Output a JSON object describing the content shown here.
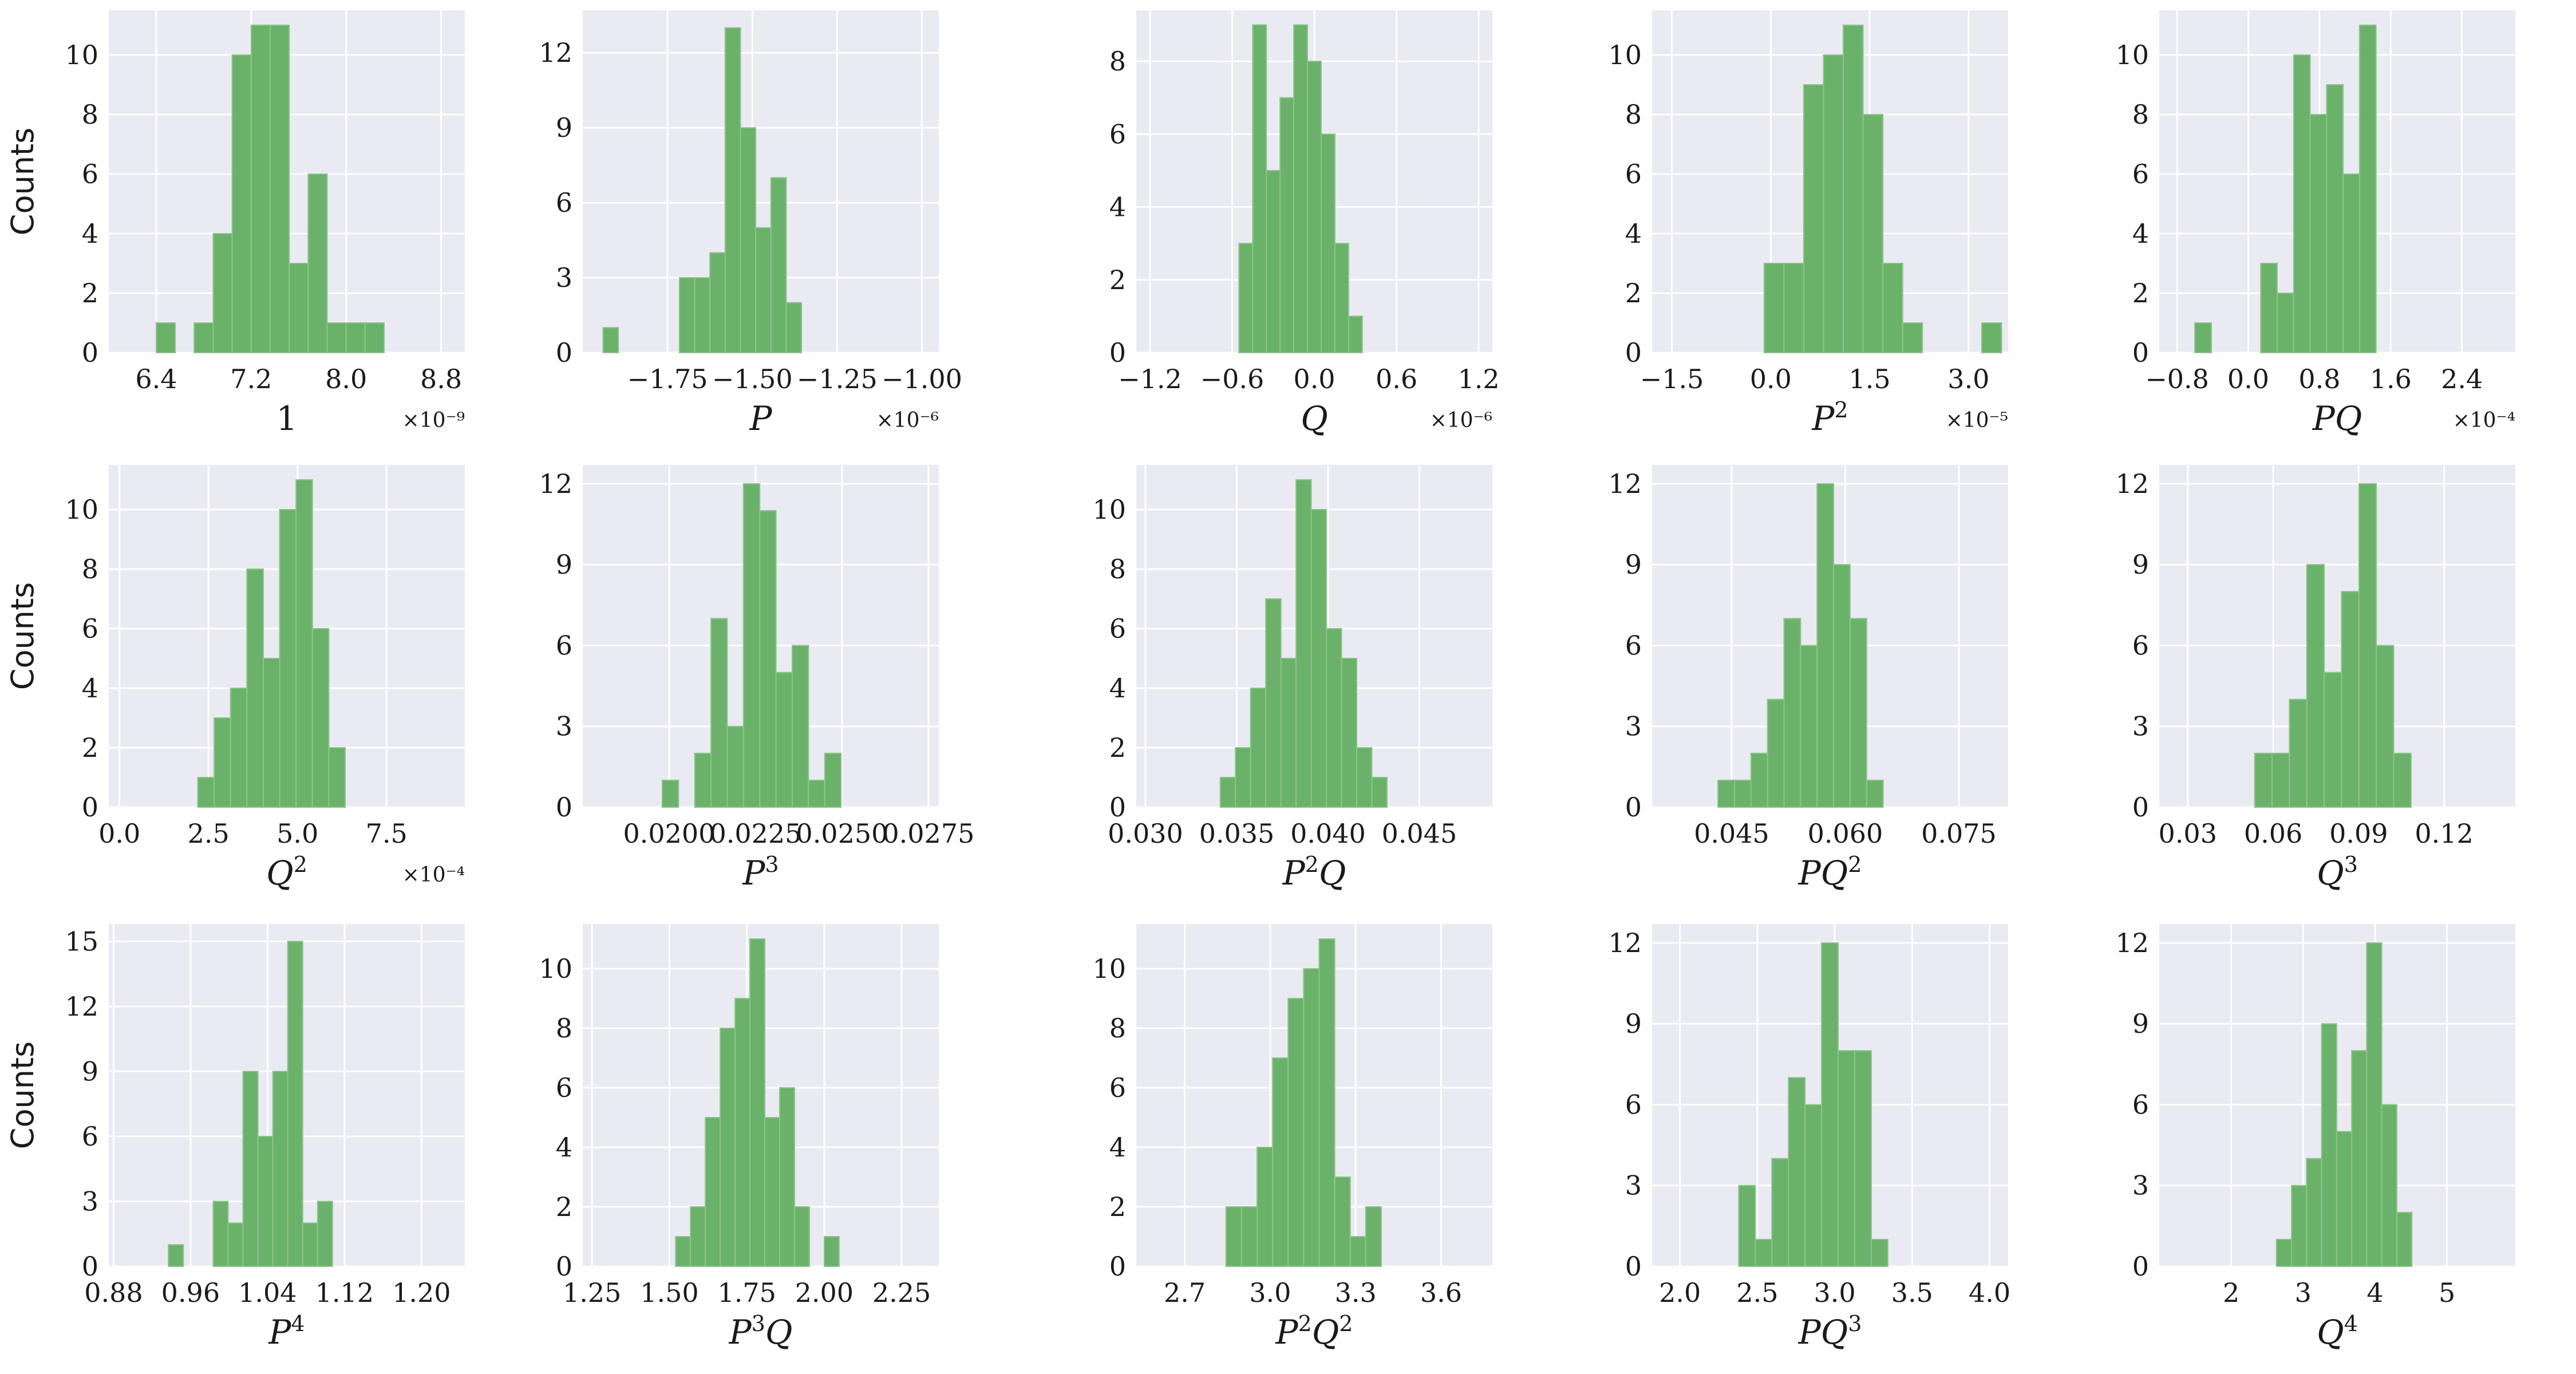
{
  "figure": {
    "background": "#ffffff",
    "axes_background": "#eaeaf2",
    "grid_color": "#ffffff",
    "bar_color": "#6ab26a",
    "bar_edge": "#8cc48c",
    "ylabel": "Counts"
  },
  "chart_data": [
    {
      "type": "bar",
      "xlabel": "1",
      "xlabel_sup": "",
      "exponent": "×10⁻⁹",
      "xlim": [
        6.0,
        9.0
      ],
      "xticks": [
        6.4,
        7.2,
        8.0,
        8.8
      ],
      "xtick_labels": [
        "6.4",
        "7.2",
        "8.0",
        "8.8"
      ],
      "ylim": [
        0,
        11.5
      ],
      "yticks": [
        0,
        2,
        4,
        6,
        8,
        10
      ],
      "bin_start": 6.4,
      "bin_width": 0.16,
      "values": [
        1,
        0,
        1,
        4,
        10,
        11,
        11,
        3,
        6,
        1,
        1,
        1
      ],
      "grid": true
    },
    {
      "type": "bar",
      "xlabel": "P",
      "xlabel_sup": "",
      "exponent": "×10⁻⁶",
      "xlim": [
        -2.0,
        -0.95
      ],
      "xticks": [
        -1.75,
        -1.5,
        -1.25,
        -1.0
      ],
      "xtick_labels": [
        "−1.75",
        "−1.50",
        "−1.25",
        "−1.00"
      ],
      "ylim": [
        0,
        13.7
      ],
      "yticks": [
        0,
        3,
        6,
        9,
        12
      ],
      "bin_start": -1.94,
      "bin_width": 0.045,
      "values": [
        1,
        0,
        0,
        0,
        0,
        3,
        3,
        4,
        13,
        9,
        5,
        7,
        2
      ],
      "grid": true
    },
    {
      "type": "bar",
      "xlabel": "Q",
      "xlabel_sup": "",
      "exponent": "×10⁻⁶",
      "xlim": [
        -1.3,
        1.3
      ],
      "xticks": [
        -1.2,
        -0.6,
        0,
        0.6,
        1.2
      ],
      "xtick_labels": [
        "−1.2",
        "−0.6",
        "0.0",
        "0.6",
        "1.2"
      ],
      "ylim": [
        0,
        9.4
      ],
      "yticks": [
        0,
        2,
        4,
        6,
        8
      ],
      "bin_start": -0.55,
      "bin_width": 0.1,
      "values": [
        3,
        9,
        5,
        7,
        9,
        8,
        6,
        3,
        1
      ],
      "grid": true
    },
    {
      "type": "bar",
      "xlabel": "P",
      "xlabel_sup": "2",
      "exponent": "×10⁻⁵",
      "xlim": [
        -1.8,
        3.6
      ],
      "xticks": [
        -1.5,
        0,
        1.5,
        3.0
      ],
      "xtick_labels": [
        "−1.5",
        "0.0",
        "1.5",
        "3.0"
      ],
      "ylim": [
        0,
        11.5
      ],
      "yticks": [
        0,
        2,
        4,
        6,
        8,
        10
      ],
      "bin_start": -0.1,
      "bin_width": 0.3,
      "values": [
        3,
        3,
        9,
        10,
        11,
        8,
        3,
        1,
        0,
        0,
        0,
        1
      ],
      "grid": true
    },
    {
      "type": "bar",
      "xlabel": "PQ",
      "xlabel_sup": "",
      "exponent": "×10⁻⁴",
      "xlim": [
        -1.0,
        3.0
      ],
      "xticks": [
        -0.8,
        0,
        0.8,
        1.6,
        2.4
      ],
      "xtick_labels": [
        "−0.8",
        "0.0",
        "0.8",
        "1.6",
        "2.4"
      ],
      "ylim": [
        0,
        11.5
      ],
      "yticks": [
        0,
        2,
        4,
        6,
        8,
        10
      ],
      "bin_start": -0.6,
      "bin_width": 0.185,
      "values": [
        1,
        0,
        0,
        0,
        3,
        2,
        10,
        8,
        9,
        6,
        11
      ],
      "grid": true
    },
    {
      "type": "bar",
      "xlabel": "Q",
      "xlabel_sup": "2",
      "exponent": "×10⁻⁴",
      "xlim": [
        -0.3,
        9.7
      ],
      "xticks": [
        0,
        2.5,
        5.0,
        7.5
      ],
      "xtick_labels": [
        "0.0",
        "2.5",
        "5.0",
        "7.5"
      ],
      "ylim": [
        0,
        11.5
      ],
      "yticks": [
        0,
        2,
        4,
        6,
        8,
        10
      ],
      "bin_start": 2.2,
      "bin_width": 0.46,
      "values": [
        1,
        3,
        4,
        8,
        5,
        10,
        11,
        6,
        2
      ],
      "grid": true
    },
    {
      "type": "bar",
      "xlabel": "P",
      "xlabel_sup": "3",
      "exponent": "",
      "xlim": [
        0.0175,
        0.0278
      ],
      "xticks": [
        0.02,
        0.0225,
        0.025,
        0.0275
      ],
      "xtick_labels": [
        "0.0200",
        "0.0225",
        "0.0250",
        "0.0275"
      ],
      "ylim": [
        0,
        12.7
      ],
      "yticks": [
        0,
        3,
        6,
        9,
        12
      ],
      "bin_start": 0.0198,
      "bin_width": 0.00047,
      "values": [
        1,
        0,
        2,
        7,
        3,
        12,
        11,
        5,
        6,
        1,
        2
      ],
      "grid": true
    },
    {
      "type": "bar",
      "xlabel": "P",
      "xlabel_sup": "2",
      "xlabel_tail": "Q",
      "exponent": "",
      "xlim": [
        0.0295,
        0.049
      ],
      "xticks": [
        0.03,
        0.035,
        0.04,
        0.045
      ],
      "xtick_labels": [
        "0.030",
        "0.035",
        "0.040",
        "0.045"
      ],
      "ylim": [
        0,
        11.5
      ],
      "yticks": [
        0,
        2,
        4,
        6,
        8,
        10
      ],
      "bin_start": 0.0341,
      "bin_width": 0.00083,
      "values": [
        1,
        2,
        4,
        7,
        5,
        11,
        10,
        6,
        5,
        2,
        1
      ],
      "grid": true
    },
    {
      "type": "bar",
      "xlabel": "PQ",
      "xlabel_sup": "2",
      "exponent": "",
      "xlim": [
        0.0345,
        0.0815
      ],
      "xticks": [
        0.045,
        0.06,
        0.075
      ],
      "xtick_labels": [
        "0.045",
        "0.060",
        "0.075"
      ],
      "ylim": [
        0,
        12.7
      ],
      "yticks": [
        0,
        3,
        6,
        9,
        12
      ],
      "bin_start": 0.0432,
      "bin_width": 0.00218,
      "values": [
        1,
        1,
        2,
        4,
        7,
        6,
        12,
        9,
        7,
        1
      ],
      "grid": true
    },
    {
      "type": "bar",
      "xlabel": "Q",
      "xlabel_sup": "3",
      "exponent": "",
      "xlim": [
        0.02,
        0.145
      ],
      "xticks": [
        0.03,
        0.06,
        0.09,
        0.12
      ],
      "xtick_labels": [
        "0.03",
        "0.06",
        "0.09",
        "0.12"
      ],
      "ylim": [
        0,
        12.7
      ],
      "yticks": [
        0,
        3,
        6,
        9,
        12
      ],
      "bin_start": 0.0535,
      "bin_width": 0.0061,
      "values": [
        2,
        2,
        4,
        9,
        5,
        8,
        12,
        6,
        2
      ],
      "grid": true
    },
    {
      "type": "bar",
      "xlabel": "P",
      "xlabel_sup": "4",
      "exponent": "",
      "xlim": [
        0.875,
        1.245
      ],
      "xticks": [
        0.88,
        0.96,
        1.04,
        1.12,
        1.2
      ],
      "xtick_labels": [
        "0.88",
        "0.96",
        "1.04",
        "1.12",
        "1.20"
      ],
      "ylim": [
        0,
        15.8
      ],
      "yticks": [
        0,
        3,
        6,
        9,
        12,
        15
      ],
      "bin_start": 0.937,
      "bin_width": 0.0155,
      "values": [
        1,
        0,
        0,
        3,
        2,
        9,
        6,
        9,
        15,
        2,
        3
      ],
      "grid": true
    },
    {
      "type": "bar",
      "xlabel": "P",
      "xlabel_sup": "3",
      "xlabel_tail": "Q",
      "exponent": "",
      "xlim": [
        1.22,
        2.37
      ],
      "xticks": [
        1.25,
        1.5,
        1.75,
        2.0,
        2.25
      ],
      "xtick_labels": [
        "1.25",
        "1.50",
        "1.75",
        "2.00",
        "2.25"
      ],
      "ylim": [
        0,
        11.5
      ],
      "yticks": [
        0,
        2,
        4,
        6,
        8,
        10
      ],
      "bin_start": 1.52,
      "bin_width": 0.048,
      "values": [
        1,
        2,
        5,
        8,
        9,
        11,
        5,
        6,
        2,
        0,
        1
      ],
      "grid": true
    },
    {
      "type": "bar",
      "xlabel": "P",
      "xlabel_sup": "2",
      "xlabel_tail": "Q",
      "xlabel_tail_sup": "2",
      "exponent": "",
      "xlim": [
        2.53,
        3.78
      ],
      "xticks": [
        2.7,
        3.0,
        3.3,
        3.6
      ],
      "xtick_labels": [
        "2.7",
        "3.0",
        "3.3",
        "3.6"
      ],
      "ylim": [
        0,
        11.5
      ],
      "yticks": [
        0,
        2,
        4,
        6,
        8,
        10
      ],
      "bin_start": 2.845,
      "bin_width": 0.0545,
      "values": [
        2,
        2,
        4,
        7,
        9,
        10,
        11,
        3,
        1,
        2
      ],
      "grid": true
    },
    {
      "type": "bar",
      "xlabel": "PQ",
      "xlabel_sup": "3",
      "exponent": "",
      "xlim": [
        1.82,
        4.12
      ],
      "xticks": [
        2.0,
        2.5,
        3.0,
        3.5,
        4.0
      ],
      "xtick_labels": [
        "2.0",
        "2.5",
        "3.0",
        "3.5",
        "4.0"
      ],
      "ylim": [
        0,
        12.7
      ],
      "yticks": [
        0,
        3,
        6,
        9,
        12
      ],
      "bin_start": 2.38,
      "bin_width": 0.107,
      "values": [
        3,
        1,
        4,
        7,
        6,
        12,
        8,
        8,
        1
      ],
      "grid": true
    },
    {
      "type": "bar",
      "xlabel": "Q",
      "xlabel_sup": "4",
      "exponent": "",
      "xlim": [
        1.0,
        5.95
      ],
      "xticks": [
        2,
        3,
        4,
        5
      ],
      "xtick_labels": [
        "2",
        "3",
        "4",
        "5"
      ],
      "ylim": [
        0,
        12.7
      ],
      "yticks": [
        0,
        3,
        6,
        9,
        12
      ],
      "bin_start": 2.63,
      "bin_width": 0.209,
      "values": [
        1,
        3,
        4,
        9,
        5,
        8,
        12,
        6,
        2
      ],
      "grid": true
    }
  ]
}
